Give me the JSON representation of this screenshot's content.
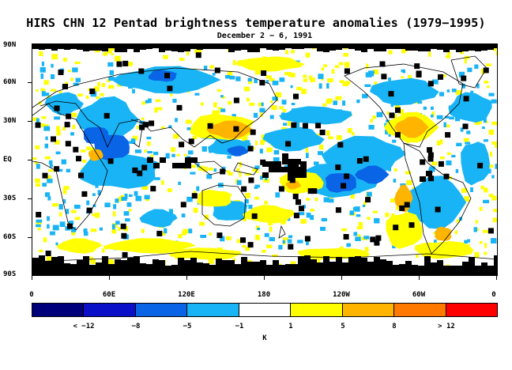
{
  "title": "HIRS CHN 12 Pentad brightness temperature anomalies (1979−1995)",
  "subtitle": "December 2 − 6, 1991",
  "lat_labels": [
    "90N",
    "60N",
    "30N",
    "EQ",
    "30S",
    "60S",
    "90S"
  ],
  "lon_labels": [
    "0",
    "60E",
    "120E",
    "180",
    "120W",
    "60W",
    "0"
  ],
  "colorbar": {
    "colors": [
      "#00007a",
      "#0a10c8",
      "#0a64e6",
      "#19b4f5",
      "#ffffff",
      "#ffff00",
      "#ffb400",
      "#ff7800",
      "#ff0000"
    ],
    "labels": [
      "< −12",
      "−8",
      "−5",
      "−1",
      "1",
      "5",
      "8",
      "> 12"
    ],
    "unit": "K"
  },
  "legend_colors": {
    "missing": "#000000",
    "coast": "#000000"
  }
}
